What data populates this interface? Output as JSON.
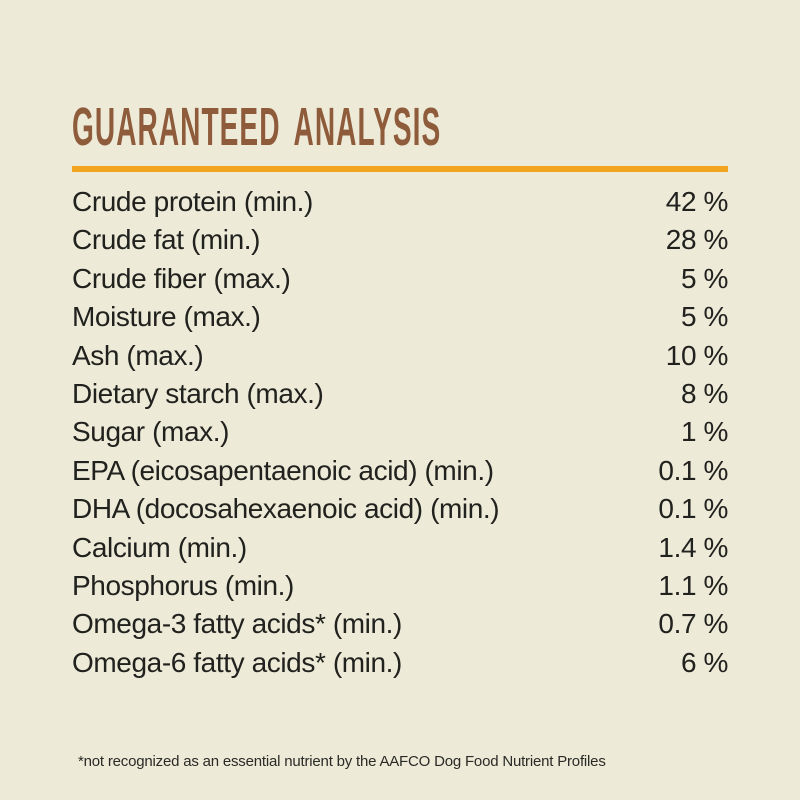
{
  "page": {
    "background_color": "#EDEAD8",
    "text_color": "#21211E"
  },
  "header": {
    "title": "GUARANTEED ANALYSIS",
    "title_color": "#8E5B3B",
    "rule_color": "#F4A51F"
  },
  "analysis": {
    "rows": [
      {
        "label": "Crude protein (min.)",
        "value": "42 %"
      },
      {
        "label": "Crude fat (min.)",
        "value": "28 %"
      },
      {
        "label": "Crude fiber (max.)",
        "value": "5 %"
      },
      {
        "label": "Moisture (max.)",
        "value": "5 %"
      },
      {
        "label": "Ash (max.)",
        "value": "10 %"
      },
      {
        "label": "Dietary starch (max.)",
        "value": "8 %"
      },
      {
        "label": "Sugar (max.)",
        "value": "1 %"
      },
      {
        "label": "EPA (eicosapentaenoic acid) (min.)",
        "value": "0.1 %"
      },
      {
        "label": "DHA (docosahexaenoic acid) (min.)",
        "value": "0.1 %"
      },
      {
        "label": "Calcium (min.)",
        "value": "1.4 %"
      },
      {
        "label": "Phosphorus (min.)",
        "value": "1.1 %"
      },
      {
        "label": "Omega-3 fatty acids* (min.)",
        "value": "0.7 %"
      },
      {
        "label": "Omega-6 fatty acids* (min.)",
        "value": "6 %"
      }
    ]
  },
  "footnote": "*not recognized as an essential nutrient by the AAFCO Dog Food Nutrient Profiles"
}
